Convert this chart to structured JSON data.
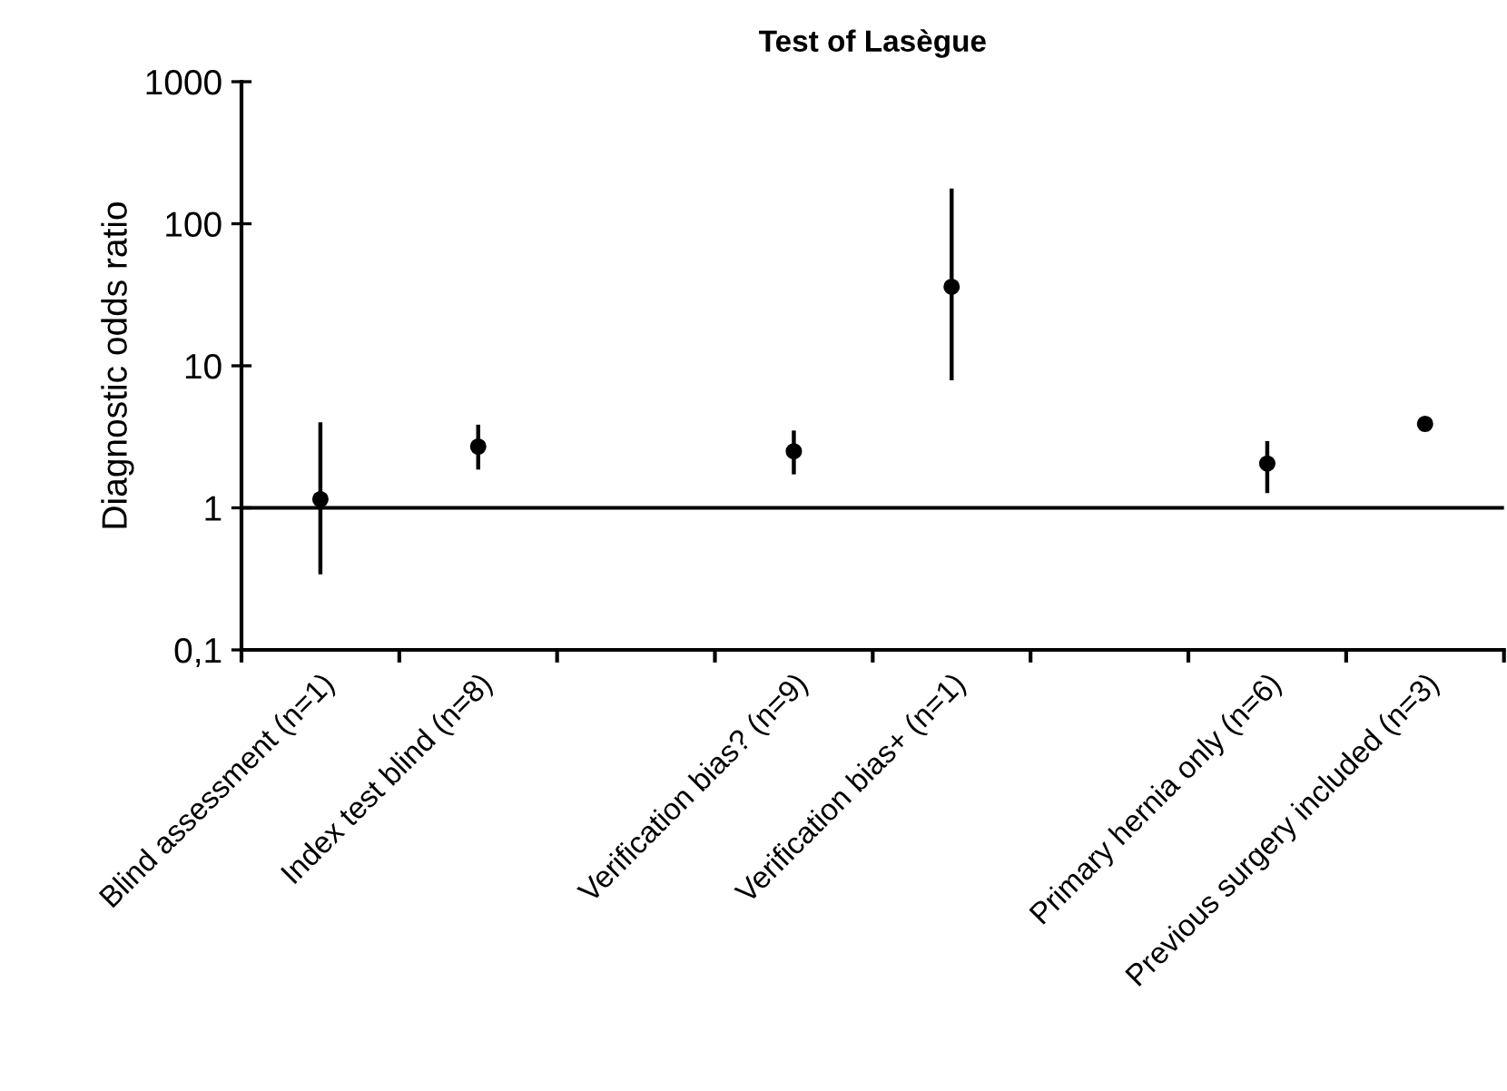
{
  "chart_data": {
    "type": "scatter",
    "title": "Test of Lasègue",
    "ylabel": "Diagnostic odds ratio",
    "categories": [
      "Blind assessment (n=1)",
      "Index test blind (n=8)",
      null,
      "Verification bias? (n=9)",
      "Verification bias+ (n=1)",
      null,
      "Primary hernia only (n=6)",
      "Previous surgery included (n=3)"
    ],
    "series": [
      {
        "color": "#000000",
        "values": [
          1.15,
          2.7,
          null,
          2.5,
          36,
          null,
          2.05,
          3.9
        ],
        "errors": [
          [
            0.34,
            4.0
          ],
          [
            1.86,
            3.85
          ],
          null,
          [
            1.72,
            3.5
          ],
          [
            7.9,
            177
          ],
          null,
          [
            1.27,
            2.95
          ],
          null
        ]
      }
    ],
    "log": "y",
    "ylim": [
      0.1,
      1000
    ],
    "yticks": [
      {
        "value": 0.1,
        "label": "0,1"
      },
      1,
      10,
      100,
      1000
    ],
    "ref_lines": [
      {
        "axis": "y",
        "value": 1,
        "color": "#000000"
      }
    ],
    "marker": "circle",
    "grid": false,
    "legend": false
  }
}
